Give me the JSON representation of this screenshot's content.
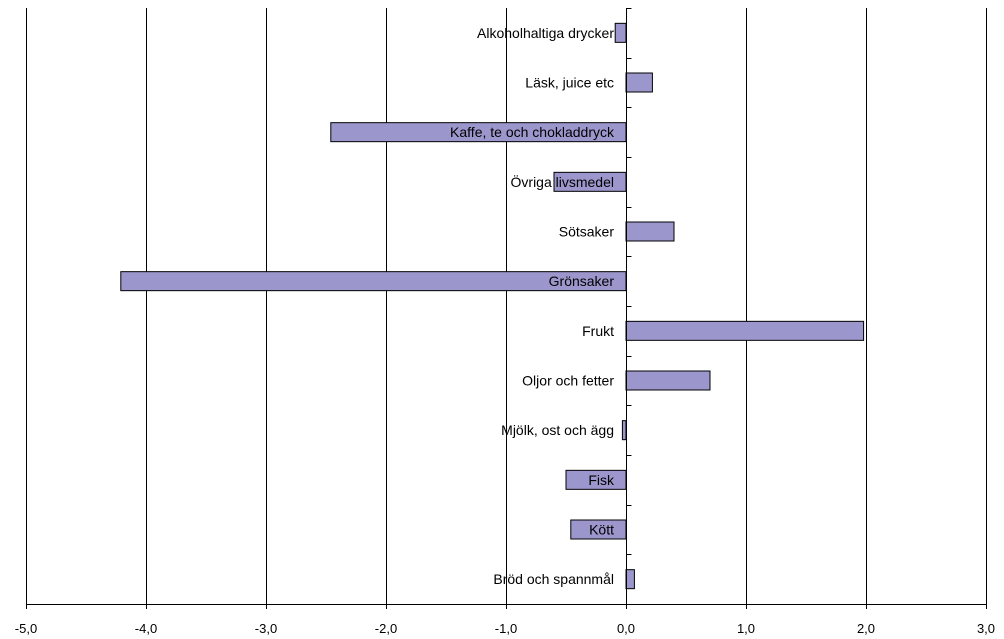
{
  "chart_data": {
    "type": "bar",
    "orientation": "horizontal",
    "categories": [
      "Alkoholhaltiga drycker",
      "Läsk, juice etc",
      "Kaffe, te och chokladdryck",
      "Övriga livsmedel",
      "Sötsaker",
      "Grönsaker",
      "Frukt",
      "Oljor och fetter",
      "Mjölk, ost och ägg",
      "Fisk",
      "Kött",
      "Bröd och spannmål"
    ],
    "values": [
      -0.09,
      0.22,
      -2.46,
      -0.6,
      0.4,
      -4.21,
      1.98,
      0.7,
      -0.03,
      -0.5,
      -0.46,
      0.07
    ],
    "xlim": [
      -5.0,
      3.0
    ],
    "x_ticks": [
      "-5,0",
      "-4,0",
      "-3,0",
      "-2,0",
      "-1,0",
      "0,0",
      "1,0",
      "2,0",
      "3,0"
    ],
    "x_tick_values": [
      -5,
      -4,
      -3,
      -2,
      -1,
      0,
      1,
      2,
      3
    ],
    "grid": "vertical",
    "bar_color": "#9b97cc",
    "title": "",
    "xlabel": "",
    "ylabel": ""
  }
}
